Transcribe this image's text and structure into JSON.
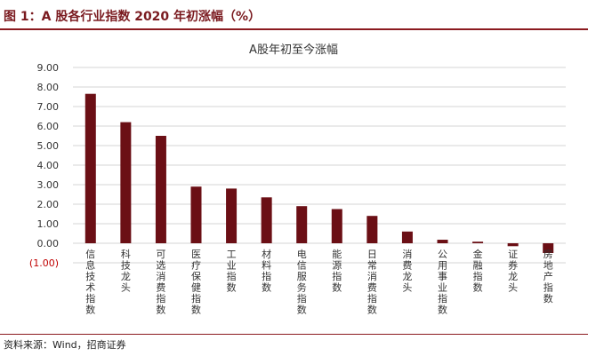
{
  "header": {
    "figure_title": "图 1：A 股各行业指数 2020 年初涨幅（%）"
  },
  "footer": {
    "source": "资料来源：Wind，招商证券"
  },
  "colors": {
    "bar": "#6b0f15",
    "accent": "#8b1a1f",
    "grid": "#d6d6d6",
    "negative_tick": "#c00000"
  },
  "chart_data": {
    "type": "bar",
    "title": "A股年初至今涨幅",
    "xlabel": "",
    "ylabel": "",
    "ylim": [
      -1.0,
      9.0
    ],
    "yticks": [
      {
        "value": 9,
        "label": "9.00"
      },
      {
        "value": 8,
        "label": "8.00"
      },
      {
        "value": 7,
        "label": "7.00"
      },
      {
        "value": 6,
        "label": "6.00"
      },
      {
        "value": 5,
        "label": "5.00"
      },
      {
        "value": 4,
        "label": "4.00"
      },
      {
        "value": 3,
        "label": "3.00"
      },
      {
        "value": 2,
        "label": "2.00"
      },
      {
        "value": 1,
        "label": "1.00"
      },
      {
        "value": 0,
        "label": "0.00"
      },
      {
        "value": -1,
        "label": "(1.00)"
      }
    ],
    "grid": true,
    "legend": "none",
    "categories": [
      "信息技术指数",
      "科技龙头",
      "可选消费指数",
      "医疗保健指数",
      "工业指数",
      "材料指数",
      "电信服务指数",
      "能源指数",
      "日常消费指数",
      "消费龙头",
      "公用事业指数",
      "金融指数",
      "证券龙头",
      "房地产指数"
    ],
    "values": [
      7.65,
      6.2,
      5.5,
      2.9,
      2.8,
      2.35,
      1.9,
      1.75,
      1.4,
      0.6,
      0.18,
      0.08,
      -0.15,
      -0.5
    ]
  }
}
